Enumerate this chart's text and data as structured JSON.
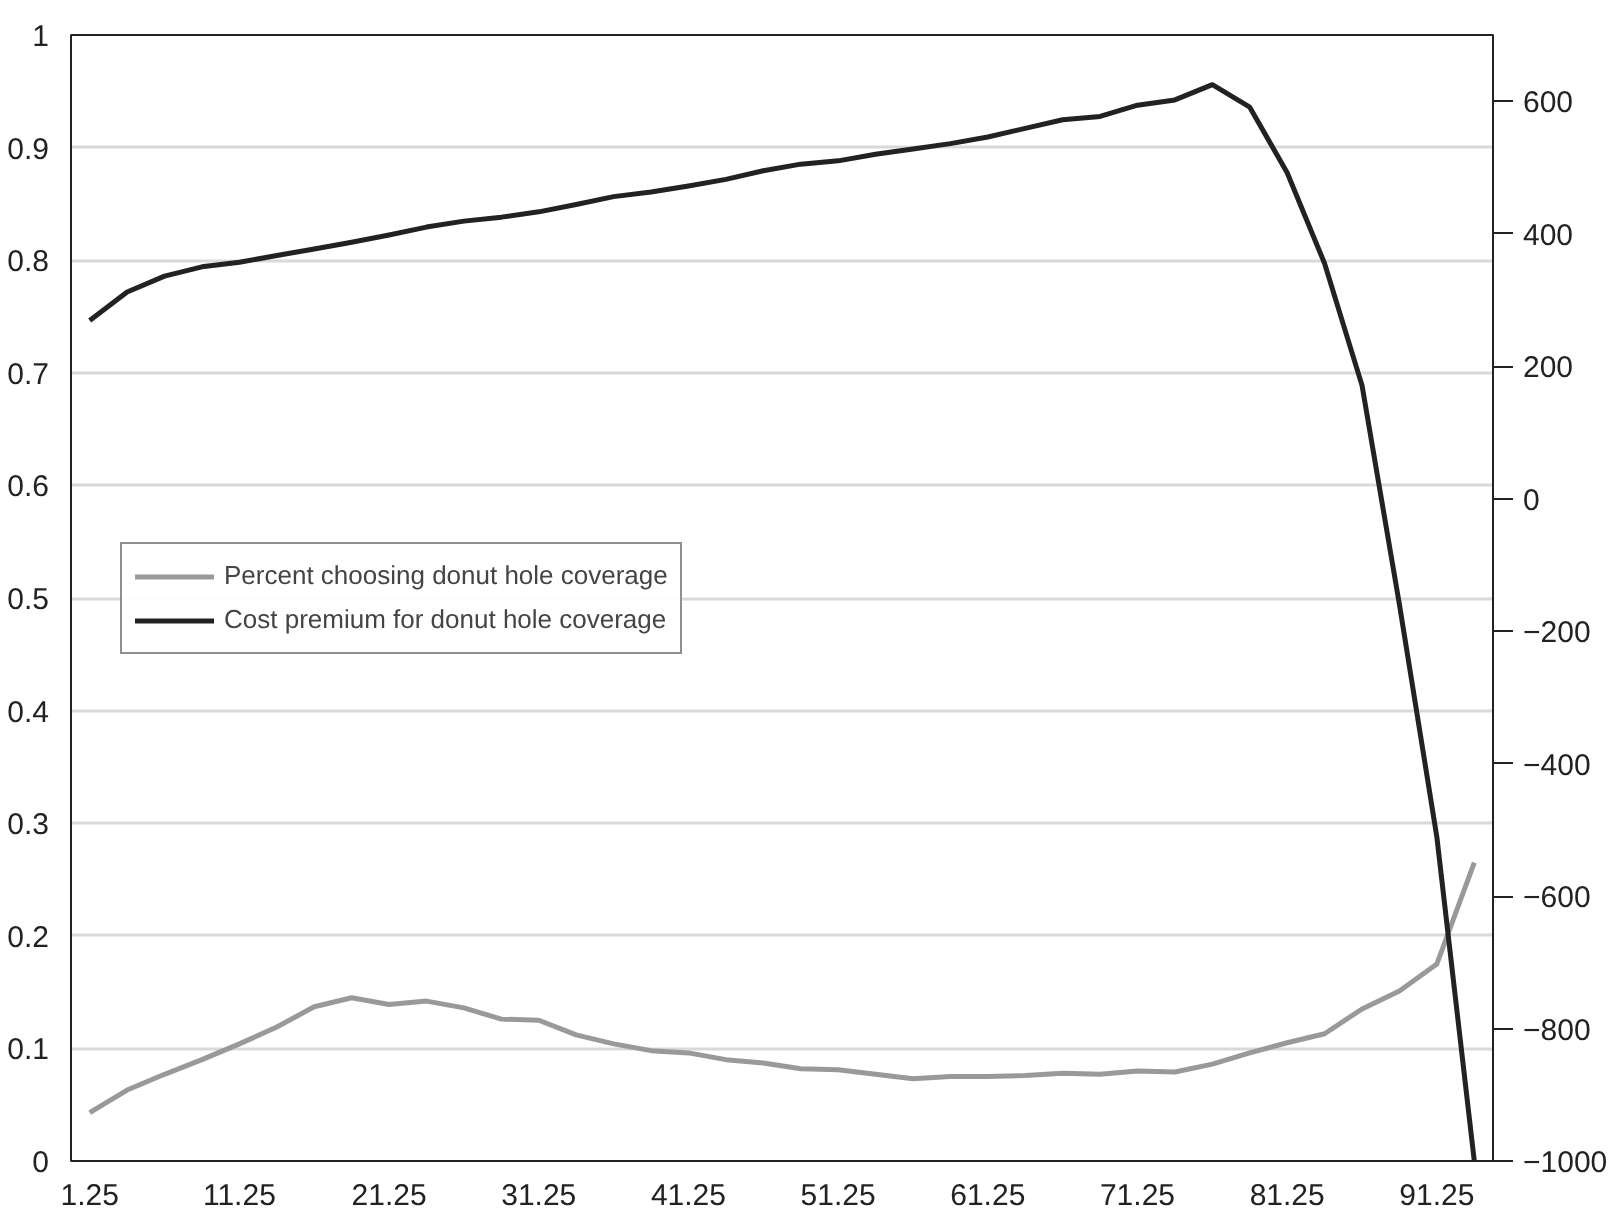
{
  "chart_data": {
    "type": "line",
    "x": [
      1.25,
      3.75,
      6.25,
      8.75,
      11.25,
      13.75,
      16.25,
      18.75,
      21.25,
      23.75,
      26.25,
      28.75,
      31.25,
      33.75,
      36.25,
      38.75,
      41.25,
      43.75,
      46.25,
      48.75,
      51.25,
      53.75,
      56.25,
      58.75,
      61.25,
      63.75,
      66.25,
      68.75,
      71.25,
      73.75,
      76.25,
      78.75,
      81.25,
      83.75,
      86.25,
      88.75,
      91.25,
      93.75
    ],
    "series": [
      {
        "name": "Percent choosing donut hole coverage",
        "color": "#999999",
        "values": [
          0.043,
          0.063,
          0.077,
          0.09,
          0.104,
          0.119,
          0.137,
          0.145,
          0.139,
          0.142,
          0.136,
          0.126,
          0.125,
          0.112,
          0.104,
          0.098,
          0.096,
          0.09,
          0.087,
          0.082,
          0.081,
          0.077,
          0.073,
          0.075,
          0.075,
          0.076,
          0.078,
          0.077,
          0.08,
          0.079,
          0.086,
          0.096,
          0.105,
          0.113,
          0.135,
          0.151,
          0.175,
          0.265
        ]
      },
      {
        "name": "Cost premium for donut hole coverage",
        "color": "#222222",
        "axis": "y2",
        "values": [
          269,
          312,
          336,
          350,
          357,
          367,
          377,
          387,
          398,
          410,
          419,
          425,
          433,
          444,
          456,
          463,
          472,
          482,
          495,
          505,
          510,
          520,
          528,
          536,
          546,
          559,
          572,
          577,
          594,
          602,
          625,
          591,
          492,
          355,
          171,
          -160,
          -511,
          -1000
        ]
      }
    ],
    "xlim": [
      0,
      95
    ],
    "xticks": [
      1.25,
      11.25,
      21.25,
      31.25,
      41.25,
      51.25,
      61.25,
      71.25,
      81.25,
      91.25
    ],
    "ylim": [
      0,
      1
    ],
    "yticks": [
      0,
      0.1,
      0.2,
      0.3,
      0.4,
      0.5,
      0.6,
      0.7,
      0.8,
      0.9,
      1
    ],
    "y2lim": [
      -1000,
      700
    ],
    "y2ticks": [
      {
        "value": -1000,
        "label": "−1000"
      },
      {
        "value": -800,
        "label": "−800"
      },
      {
        "value": -600,
        "label": "−600"
      },
      {
        "value": -400,
        "label": "−400"
      },
      {
        "value": -200,
        "label": "−200"
      },
      0,
      200,
      400,
      600
    ],
    "grid": "y",
    "legend": "left",
    "line_style": "solid"
  }
}
